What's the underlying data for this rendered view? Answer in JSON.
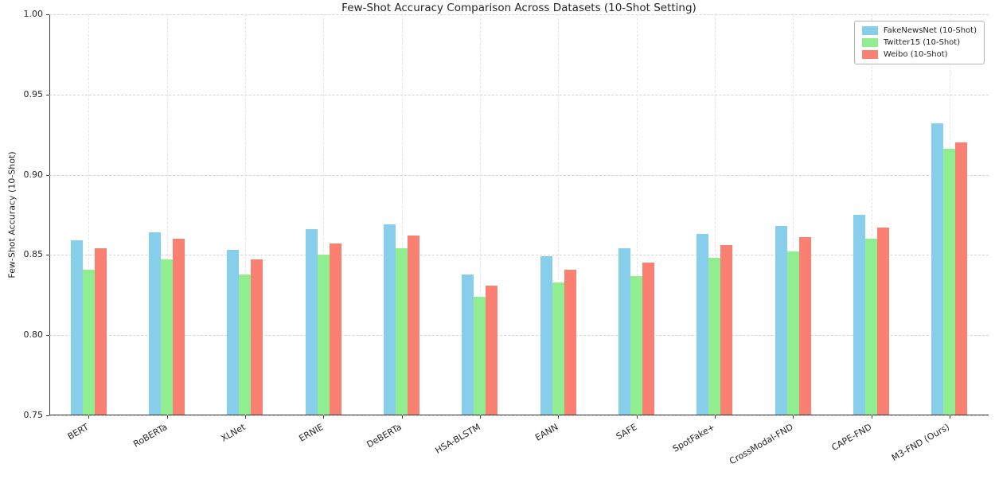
{
  "chart_data": {
    "type": "bar",
    "title": "Few-Shot Accuracy Comparison Across Datasets (10-Shot Setting)",
    "xlabel": "",
    "ylabel": "Few-Shot Accuracy (10-Shot)",
    "ylim": [
      0.75,
      1.0
    ],
    "yticks": [
      0.75,
      0.8,
      0.85,
      0.9,
      0.95,
      1.0
    ],
    "grid": true,
    "legend_position": "upper right",
    "categories": [
      "BERT",
      "RoBERTa",
      "XLNet",
      "ERNIE",
      "DeBERTa",
      "HSA-BLSTM",
      "EANN",
      "SAFE",
      "SpotFake+",
      "CrossModal-FND",
      "CAPE-FND",
      "M3-FND (Ours)"
    ],
    "series": [
      {
        "name": "FakeNewsNet (10-Shot)",
        "color": "#87CEEB",
        "values": [
          0.859,
          0.864,
          0.853,
          0.866,
          0.869,
          0.838,
          0.849,
          0.854,
          0.863,
          0.868,
          0.875,
          0.932
        ]
      },
      {
        "name": "Twitter15 (10-Shot)",
        "color": "#90EE90",
        "values": [
          0.841,
          0.847,
          0.838,
          0.85,
          0.854,
          0.824,
          0.833,
          0.837,
          0.848,
          0.852,
          0.86,
          0.916
        ]
      },
      {
        "name": "Weibo (10-Shot)",
        "color": "#FA8072",
        "values": [
          0.854,
          0.86,
          0.847,
          0.857,
          0.862,
          0.831,
          0.841,
          0.845,
          0.856,
          0.861,
          0.867,
          0.92
        ]
      }
    ]
  }
}
